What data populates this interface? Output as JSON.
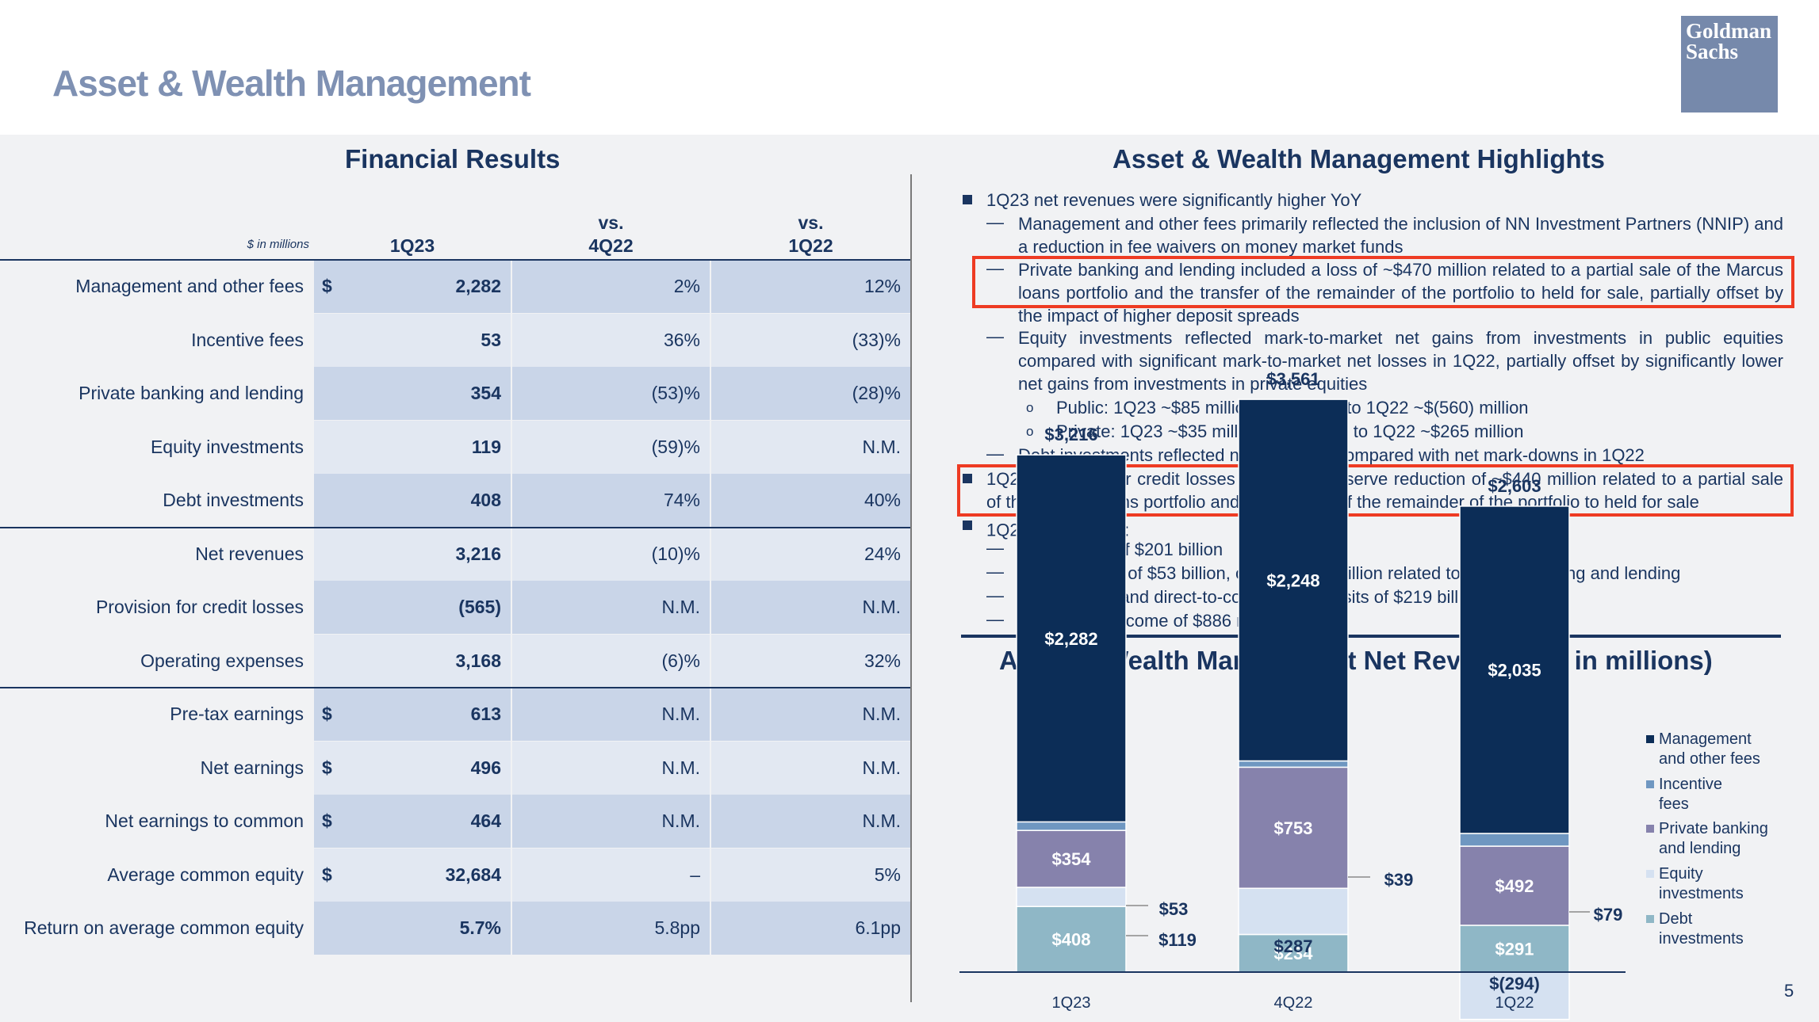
{
  "page": {
    "title": "Asset & Wealth Management",
    "logo_line1": "Goldman",
    "logo_line2": "Sachs",
    "page_number": "5"
  },
  "financial": {
    "title": "Financial Results",
    "units_note": "$ in millions",
    "col1": "1Q23",
    "col2_line1": "vs.",
    "col2_line2": "4Q22",
    "col3_line1": "vs.",
    "col3_line2": "1Q22",
    "rows": [
      {
        "label": "Management and other fees",
        "dollar": "$",
        "v1": "2,282",
        "v2": "2%",
        "v3": "12%"
      },
      {
        "label": "Incentive fees",
        "dollar": "",
        "v1": "53",
        "v2": "36%",
        "v3": "(33)%"
      },
      {
        "label": "Private banking and lending",
        "dollar": "",
        "v1": "354",
        "v2": "(53)%",
        "v3": "(28)%"
      },
      {
        "label": "Equity investments",
        "dollar": "",
        "v1": "119",
        "v2": "(59)%",
        "v3": "N.M."
      },
      {
        "label": "Debt investments",
        "dollar": "",
        "v1": "408",
        "v2": "74%",
        "v3": "40%"
      },
      {
        "label": "Net revenues",
        "dollar": "",
        "v1": "3,216",
        "v2": "(10)%",
        "v3": "24%"
      },
      {
        "label": "Provision for credit losses",
        "dollar": "",
        "v1": "(565)",
        "v2": "N.M.",
        "v3": "N.M."
      },
      {
        "label": "Operating expenses",
        "dollar": "",
        "v1": "3,168",
        "v2": "(6)%",
        "v3": "32%"
      },
      {
        "label": "Pre-tax earnings",
        "dollar": "$",
        "v1": "613",
        "v2": "N.M.",
        "v3": "N.M."
      },
      {
        "label": "Net earnings",
        "dollar": "$",
        "v1": "496",
        "v2": "N.M.",
        "v3": "N.M."
      },
      {
        "label": "Net earnings to common",
        "dollar": "$",
        "v1": "464",
        "v2": "N.M.",
        "v3": "N.M."
      },
      {
        "label": "Average common equity",
        "dollar": "$",
        "v1": "32,684",
        "v2": "–",
        "v3": "5%"
      },
      {
        "label": "Return on average common equity",
        "dollar": "",
        "v1": "5.7%",
        "v2": "5.8pp",
        "v3": "6.1pp"
      }
    ]
  },
  "highlights": {
    "title": "Asset & Wealth Management Highlights",
    "b1": "1Q23 net revenues were significantly higher YoY",
    "d1": "Management and other fees primarily reflected the inclusion of NN Investment Partners (NNIP) and a reduction in fee waivers on money market funds",
    "d2": "Private banking and lending included a loss of ~$470 million related to a partial sale of the Marcus loans portfolio and the transfer of the remainder of the portfolio to held for sale, partially offset by the impact of higher deposit spreads",
    "d3": "Equity investments reflected mark-to-market net gains from investments in public equities compared with significant mark-to-market net losses in 1Q22, partially offset by significantly lower net gains from investments in private equities",
    "c1": "Public: 1Q23 ~$85 million, compared to 1Q22 ~$(560) million",
    "c2": "Private: 1Q23 ~$35 million, compared to 1Q22 ~$265 million",
    "d4": "Debt investments reflected net mark-ups compared with net mark-downs in 1Q22",
    "b2": "1Q23 provision for credit losses reflected a reserve reduction of ~$440 million related to a partial sale of the Marcus loans portfolio and the transfer of the remainder of the portfolio to held for sale",
    "b3": "1Q23 select data",
    "b3_sup": "4",
    "b3_colon": ":",
    "d5": "Total assets of $201 billion",
    "d6": "Loan balance of $53 billion, of which $36 billion related to Private banking and lending",
    "d7": "Private bank and direct-to-consumer deposits of $219 billion",
    "d8": "Net interest income of $886 million"
  },
  "chart_data": {
    "type": "bar",
    "stacked": true,
    "title": "Asset & Wealth Management Net Revenues ($ in millions)",
    "categories": [
      "1Q23",
      "4Q22",
      "1Q22"
    ],
    "totals": [
      "$3,216",
      "$3,561",
      "$2,603"
    ],
    "total_values": [
      3216,
      3561,
      2603
    ],
    "legend_position": "right",
    "series": [
      {
        "name": "Management and other fees",
        "color": "#0c2d57",
        "values": [
          2282,
          2248,
          2035
        ],
        "labels": [
          "$2,282",
          "$2,248",
          "$2,035"
        ]
      },
      {
        "name": "Incentive fees",
        "color": "#6f97c1",
        "values": [
          53,
          39,
          79
        ],
        "labels": [
          "$53",
          "$39",
          "$79"
        ]
      },
      {
        "name": "Private banking and lending",
        "color": "#8682ac",
        "values": [
          354,
          753,
          492
        ],
        "labels": [
          "$354",
          "$753",
          "$492"
        ]
      },
      {
        "name": "Equity investments",
        "color": "#d5e1f1",
        "values": [
          119,
          287,
          -294
        ],
        "labels": [
          "$119",
          "$287",
          "$(294)"
        ]
      },
      {
        "name": "Debt investments",
        "color": "#8fb7c6",
        "values": [
          408,
          234,
          291
        ],
        "labels": [
          "$408",
          "$234",
          "$291"
        ]
      }
    ],
    "legend_lines": [
      [
        "Management",
        "and other fees"
      ],
      [
        "Incentive",
        "fees"
      ],
      [
        "Private banking",
        "and lending"
      ],
      [
        "Equity",
        "investments"
      ],
      [
        "Debt",
        "investments"
      ]
    ]
  }
}
